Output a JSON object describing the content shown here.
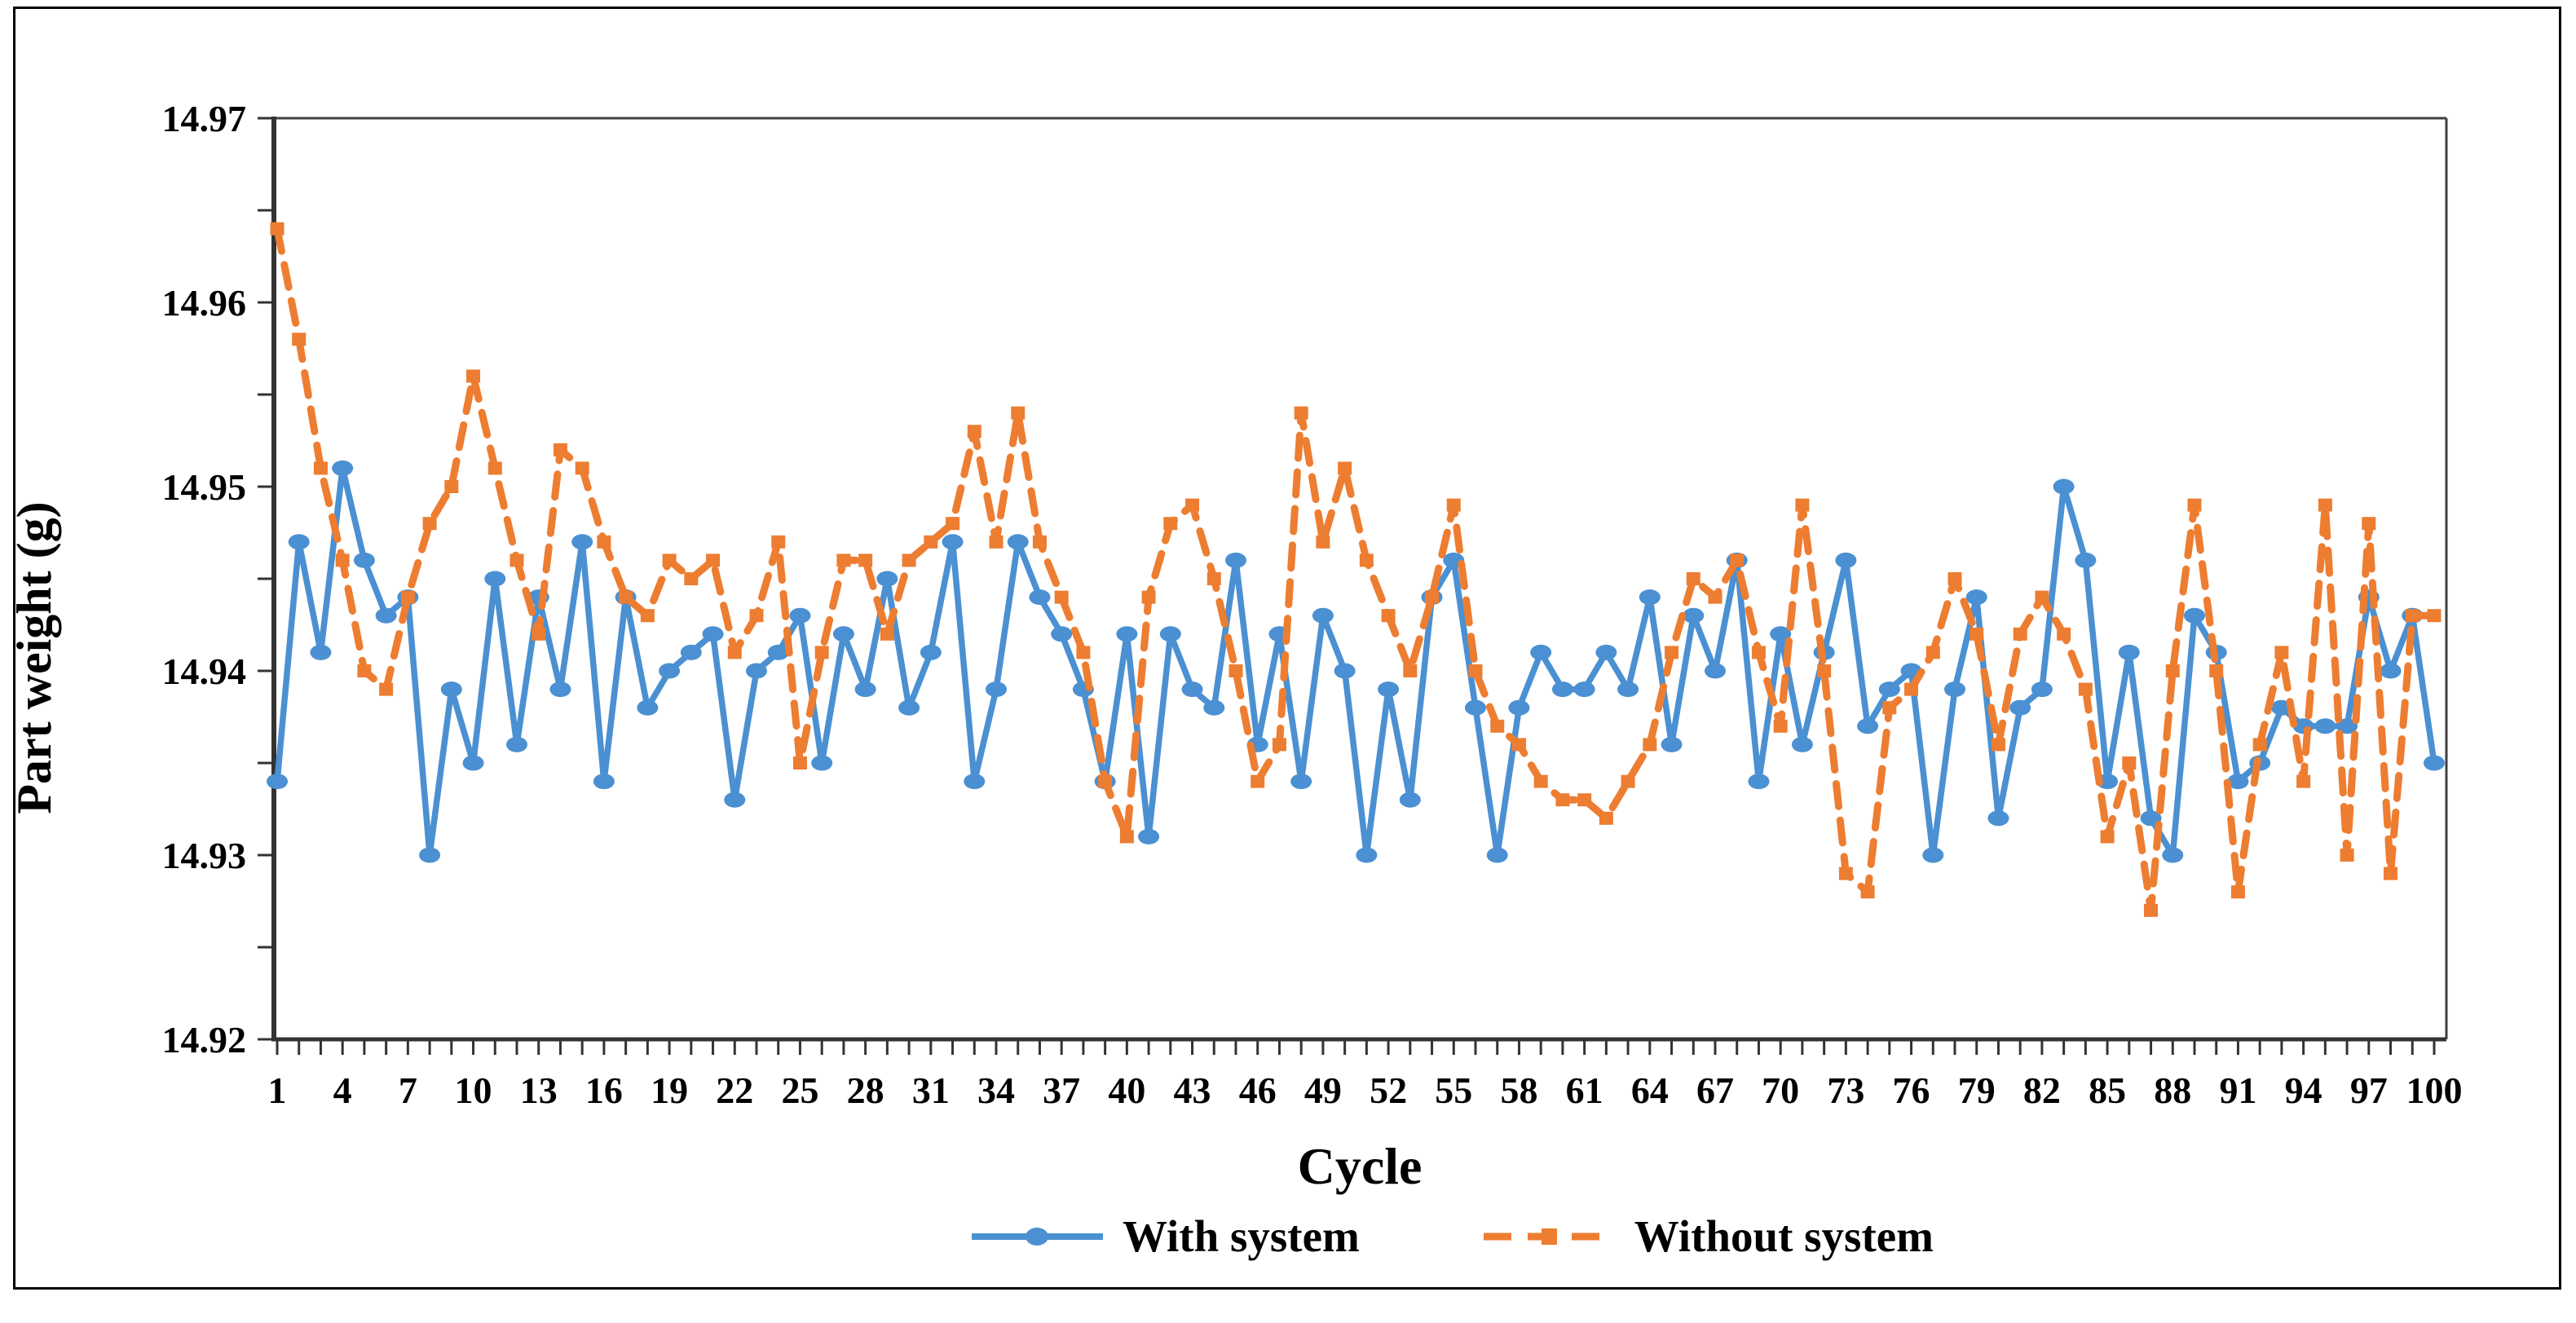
{
  "figure": {
    "kind": "line-chart-screenshot",
    "background": "#ffffff",
    "border_color": "#000000"
  },
  "chart_data": {
    "type": "line",
    "title": "",
    "xlabel": "Cycle",
    "ylabel": "Part weight (g)",
    "xlim": [
      1,
      100
    ],
    "ylim": [
      14.92,
      14.97
    ],
    "y_tick_major": 0.01,
    "y_tick_minor": 0.005,
    "y_tick_labels": [
      "14.92",
      "14.93",
      "14.94",
      "14.95",
      "14.96",
      "14.97"
    ],
    "x_tick_minor_step": 1,
    "x_tick_labels": [
      1,
      4,
      7,
      10,
      13,
      16,
      19,
      22,
      25,
      28,
      31,
      34,
      37,
      40,
      43,
      46,
      49,
      52,
      55,
      58,
      61,
      64,
      67,
      70,
      73,
      76,
      79,
      82,
      85,
      88,
      91,
      94,
      97,
      100
    ],
    "grid": false,
    "legend_position": "bottom",
    "axis_color": "#333333",
    "series": [
      {
        "name": "With system",
        "color": "#4a90d2",
        "style": "solid",
        "marker": "circle",
        "values": [
          14.934,
          14.947,
          14.941,
          14.951,
          14.946,
          14.943,
          14.944,
          14.93,
          14.939,
          14.935,
          14.945,
          14.936,
          14.944,
          14.939,
          14.947,
          14.934,
          14.944,
          14.938,
          14.94,
          14.941,
          14.942,
          14.933,
          14.94,
          14.941,
          14.943,
          14.935,
          14.942,
          14.939,
          14.945,
          14.938,
          14.941,
          14.947,
          14.934,
          14.939,
          14.947,
          14.944,
          14.942,
          14.939,
          14.934,
          14.942,
          14.931,
          14.942,
          14.939,
          14.938,
          14.946,
          14.936,
          14.942,
          14.934,
          14.943,
          14.94,
          14.93,
          14.939,
          14.933,
          14.944,
          14.946,
          14.938,
          14.93,
          14.938,
          14.941,
          14.939,
          14.939,
          14.941,
          14.939,
          14.944,
          14.936,
          14.943,
          14.94,
          14.946,
          14.934,
          14.942,
          14.936,
          14.941,
          14.946,
          14.937,
          14.939,
          14.94,
          14.93,
          14.939,
          14.944,
          14.932,
          14.938,
          14.939,
          14.95,
          14.946,
          14.934,
          14.941,
          14.932,
          14.93,
          14.943,
          14.941,
          14.934,
          14.935,
          14.938,
          14.937,
          14.937,
          14.937,
          14.944,
          14.94,
          14.943,
          14.935
        ]
      },
      {
        "name": "Without system",
        "color": "#ed7d31",
        "style": "dashed",
        "marker": "square",
        "values": [
          14.964,
          14.958,
          14.951,
          14.946,
          14.94,
          14.939,
          14.944,
          14.948,
          14.95,
          14.956,
          14.951,
          14.946,
          14.942,
          14.952,
          14.951,
          14.947,
          14.944,
          14.943,
          14.946,
          14.945,
          14.946,
          14.941,
          14.943,
          14.947,
          14.935,
          14.941,
          14.946,
          14.946,
          14.942,
          14.946,
          14.947,
          14.948,
          14.953,
          14.947,
          14.954,
          14.947,
          14.944,
          14.941,
          14.934,
          14.931,
          14.944,
          14.948,
          14.949,
          14.945,
          14.94,
          14.934,
          14.936,
          14.954,
          14.947,
          14.951,
          14.946,
          14.943,
          14.94,
          14.944,
          14.949,
          14.94,
          14.937,
          14.936,
          14.934,
          14.933,
          14.933,
          14.932,
          14.934,
          14.936,
          14.941,
          14.945,
          14.944,
          14.946,
          14.941,
          14.937,
          14.949,
          14.94,
          14.929,
          14.928,
          14.938,
          14.939,
          14.941,
          14.945,
          14.942,
          14.936,
          14.942,
          14.944,
          14.942,
          14.939,
          14.931,
          14.935,
          14.927,
          14.94,
          14.949,
          14.94,
          14.928,
          14.936,
          14.941,
          14.934,
          14.949,
          14.93,
          14.948,
          14.929,
          14.943,
          14.943
        ]
      }
    ]
  }
}
